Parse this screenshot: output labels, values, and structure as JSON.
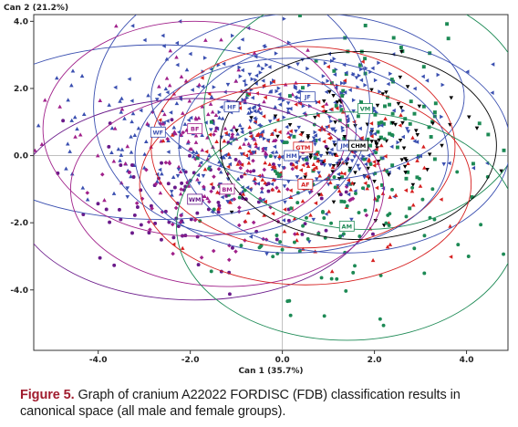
{
  "chart_data": {
    "type": "scatter",
    "xlabel": "Can 1 (35.7%)",
    "ylabel": "Can 2 (21.2%)",
    "xlim": [
      -5.4,
      4.9
    ],
    "ylim": [
      -5.8,
      4.2
    ],
    "x_ticks": [
      -4.0,
      -2.0,
      0.0,
      2.0,
      4.0
    ],
    "y_ticks": [
      4.0,
      2.0,
      0.0,
      -2.0,
      -4.0
    ],
    "grid": false,
    "groups": [
      {
        "label": "WF",
        "color": "#3a4fb0",
        "shape": "triangle-up",
        "centroid": [
          -2.7,
          0.7
        ],
        "radius_x": 4.3,
        "radius_y": 2.6
      },
      {
        "label": "HF",
        "color": "#3a4fb0",
        "shape": "triangle-left",
        "centroid": [
          -1.1,
          1.45
        ],
        "radius_x": 3.0,
        "radius_y": 3.8
      },
      {
        "label": "BF",
        "color": "#a0208a",
        "shape": "triangle-up",
        "centroid": [
          -1.9,
          0.8
        ],
        "radius_x": 3.3,
        "radius_y": 3.2
      },
      {
        "label": "WM",
        "color": "#6a1a8a",
        "shape": "circle",
        "centroid": [
          -1.9,
          -1.3
        ],
        "radius_x": 3.9,
        "radius_y": 3.0
      },
      {
        "label": "BM",
        "color": "#a0208a",
        "shape": "diamond",
        "centroid": [
          -1.2,
          -1.0
        ],
        "radius_x": 3.4,
        "radius_y": 2.9
      },
      {
        "label": "JF",
        "color": "#3a4fb0",
        "shape": "triangle-right",
        "centroid": [
          0.55,
          1.75
        ],
        "radius_x": 3.4,
        "radius_y": 2.5
      },
      {
        "label": "VM",
        "color": "#1d8a55",
        "shape": "square",
        "centroid": [
          1.8,
          1.4
        ],
        "radius_x": 3.5,
        "radius_y": 3.6
      },
      {
        "label": "JM",
        "color": "#3a4fb0",
        "shape": "triangle-left",
        "centroid": [
          1.35,
          0.3
        ],
        "radius_x": 3.6,
        "radius_y": 3.2
      },
      {
        "label": "CHM",
        "color": "#000000",
        "shape": "triangle-down",
        "centroid": [
          1.65,
          0.3
        ],
        "radius_x": 3.0,
        "radius_y": 2.8
      },
      {
        "label": "GTM",
        "color": "#d62020",
        "shape": "triangle-left",
        "centroid": [
          0.45,
          0.25
        ],
        "radius_x": 3.3,
        "radius_y": 3.0
      },
      {
        "label": "HM",
        "color": "#3a4fb0",
        "shape": "triangle-down",
        "centroid": [
          0.2,
          0.0
        ],
        "radius_x": 3.4,
        "radius_y": 2.9
      },
      {
        "label": "AF",
        "color": "#d62020",
        "shape": "triangle-up",
        "centroid": [
          0.5,
          -0.85
        ],
        "radius_x": 3.6,
        "radius_y": 3.0
      },
      {
        "label": "AM",
        "color": "#1d8a55",
        "shape": "circle",
        "centroid": [
          1.4,
          -2.1
        ],
        "radius_x": 3.7,
        "radius_y": 3.4
      }
    ]
  },
  "caption": {
    "figure": "Figure 5.",
    "text": "Graph of cranium A22022 FORDISC (FDB) classification results in canonical space (all male and female groups)."
  }
}
